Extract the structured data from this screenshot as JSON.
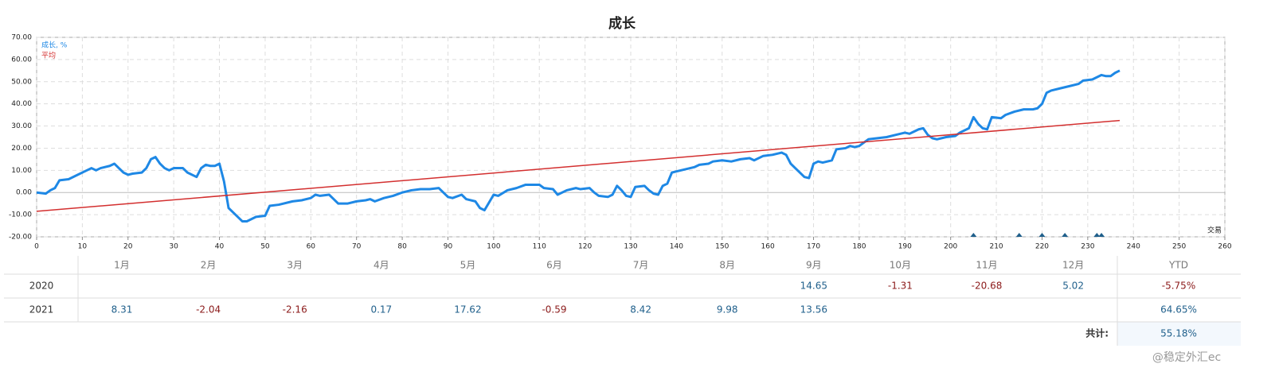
{
  "chart_data": {
    "type": "line",
    "title": "成长",
    "x_label": "交易",
    "xlim": [
      0,
      260
    ],
    "ylim": [
      -20,
      70
    ],
    "xticks": [
      0,
      10,
      20,
      30,
      40,
      50,
      60,
      70,
      80,
      90,
      100,
      110,
      120,
      130,
      140,
      150,
      160,
      170,
      180,
      190,
      200,
      210,
      220,
      230,
      240,
      250,
      260
    ],
    "yticks": [
      {
        "value": -20,
        "label": "-20.00"
      },
      {
        "value": -10,
        "label": "-10.00"
      },
      {
        "value": 0,
        "label": "0.00"
      },
      {
        "value": 10,
        "label": "10.00"
      },
      {
        "value": 20,
        "label": "20.00"
      },
      {
        "value": 30,
        "label": "30.00"
      },
      {
        "value": 40,
        "label": "40.00"
      },
      {
        "value": 50,
        "label": "50.00"
      },
      {
        "value": 60,
        "label": "60.00"
      },
      {
        "value": 70,
        "label": "70.00"
      }
    ],
    "grid": true,
    "legend": "top-left",
    "series": [
      {
        "name": "成长, %",
        "color": "#1e88e5",
        "x": [
          0,
          2,
          3,
          4,
          5,
          7,
          9,
          11,
          12,
          13,
          14,
          16,
          17,
          18,
          19,
          20,
          21,
          23,
          24,
          25,
          26,
          27,
          28,
          29,
          30,
          32,
          33,
          35,
          36,
          37,
          38,
          39,
          40,
          41,
          42,
          43,
          45,
          46,
          48,
          50,
          51,
          53,
          56,
          58,
          60,
          61,
          62,
          64,
          65,
          66,
          68,
          70,
          72,
          73,
          74,
          76,
          78,
          80,
          82,
          84,
          86,
          88,
          90,
          91,
          93,
          94,
          96,
          97,
          98,
          100,
          101,
          103,
          105,
          107,
          110,
          111,
          113,
          114,
          116,
          118,
          119,
          121,
          122,
          123,
          125,
          126,
          127,
          128,
          129,
          130,
          131,
          133,
          134,
          135,
          136,
          137,
          138,
          139,
          140,
          142,
          144,
          145,
          147,
          148,
          150,
          152,
          154,
          156,
          157,
          159,
          161,
          163,
          164,
          165,
          166,
          168,
          169,
          170,
          171,
          172,
          174,
          175,
          177,
          178,
          179,
          180,
          181,
          182,
          184,
          186,
          188,
          190,
          191,
          193,
          194,
          195,
          196,
          197,
          199,
          201,
          202,
          204,
          205,
          206,
          207,
          208,
          209,
          211,
          212,
          214,
          216,
          218,
          219,
          220,
          221,
          222,
          224,
          226,
          228,
          229,
          231,
          233,
          234,
          235,
          236,
          237
        ],
        "values": [
          0,
          -0.5,
          1,
          2,
          5.5,
          6,
          8,
          10,
          11,
          10,
          11,
          12,
          13,
          11,
          9,
          8,
          8.5,
          9,
          11,
          15,
          16,
          13,
          11,
          10,
          11,
          11,
          9,
          7,
          11,
          12.5,
          12,
          12,
          13,
          5,
          -7,
          -9,
          -13,
          -13,
          -11,
          -10.5,
          -6,
          -5.5,
          -4,
          -3.5,
          -2.5,
          -1,
          -1.5,
          -1,
          -3,
          -5,
          -5,
          -4,
          -3.5,
          -3,
          -4,
          -2.5,
          -1.5,
          0,
          1,
          1.5,
          1.5,
          2,
          -2,
          -2.5,
          -1,
          -3,
          -4,
          -7,
          -8,
          -1,
          -1.5,
          1,
          2,
          3.5,
          3.5,
          2,
          1.5,
          -1,
          1,
          2,
          1.5,
          2,
          0,
          -1.5,
          -2,
          -1,
          3,
          1,
          -1.5,
          -2,
          2.5,
          3,
          1,
          -0.5,
          -1,
          3,
          4,
          9,
          9.5,
          10.5,
          11.5,
          12.5,
          13,
          14,
          14.5,
          14,
          15,
          15.5,
          14.5,
          16.5,
          17,
          18,
          17,
          13,
          11,
          7,
          6.5,
          13,
          14,
          13.5,
          14.5,
          19.5,
          20,
          21,
          20.5,
          21,
          22.5,
          24,
          24.5,
          25,
          26,
          27,
          26.5,
          28.5,
          29,
          26,
          24.5,
          24,
          25,
          25.5,
          27,
          29,
          34,
          31,
          29,
          28.5,
          34,
          33.5,
          35,
          36.5,
          37.5,
          37.5,
          38,
          40,
          45,
          46,
          47,
          48,
          49,
          50.5,
          51,
          53,
          52.5,
          52.5,
          54,
          55
        ]
      },
      {
        "name": "平均",
        "color": "#d32f2f",
        "x": [
          0,
          237
        ],
        "values": [
          -8.5,
          32.5
        ]
      }
    ],
    "markers": {
      "color": "#1f5f8b",
      "x": [
        205,
        215,
        220,
        225,
        232,
        233
      ]
    }
  },
  "table": {
    "header": [
      "1月",
      "2月",
      "3月",
      "4月",
      "5月",
      "6月",
      "7月",
      "8月",
      "9月",
      "10月",
      "11月",
      "12月",
      "YTD"
    ],
    "rows": [
      {
        "year": "2020",
        "values": [
          null,
          null,
          null,
          null,
          null,
          null,
          null,
          null,
          "14.65",
          "-1.31",
          "-20.68",
          "5.02"
        ],
        "ytd": "-5.75%"
      },
      {
        "year": "2021",
        "values": [
          "8.31",
          "-2.04",
          "-2.16",
          "0.17",
          "17.62",
          "-0.59",
          "8.42",
          "9.98",
          "13.56",
          null,
          null,
          null
        ],
        "ytd": "64.65%"
      }
    ],
    "total_label": "共计:",
    "total": "55.18%"
  },
  "watermark": "@稳定外汇ec"
}
